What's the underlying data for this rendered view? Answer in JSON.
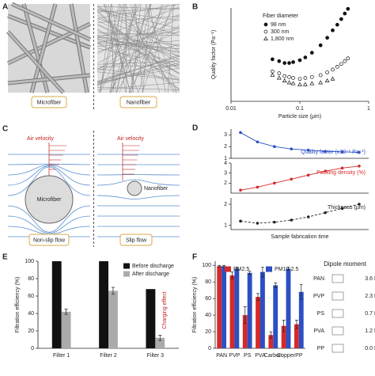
{
  "panel_a": {
    "label": "A",
    "captions": [
      "Microfiber",
      "Nanofiber"
    ]
  },
  "panel_c": {
    "label": "C",
    "velocity": [
      "Air velocity",
      "Air velocity"
    ],
    "fibers": [
      "Microfiber",
      "Nanofiber"
    ],
    "captions": [
      "Non-slip flow",
      "Slip flow"
    ]
  },
  "chart_data": [
    {
      "type": "scatter",
      "label": "B",
      "xlabel": "Particle size (μm)",
      "ylabel": "Quality factor (Pa⁻¹)",
      "xscale": "log",
      "xlim": [
        0.01,
        1
      ],
      "xticks": [
        0.01,
        0.1,
        1
      ],
      "ylim": [
        0,
        1
      ],
      "yticks": [],
      "legend_title": "Fiber diameter",
      "legend": "upper-left",
      "series": [
        {
          "name": "98 nm",
          "marker": "filled-circle",
          "color": "#111111",
          "x": [
            0.04,
            0.05,
            0.06,
            0.07,
            0.08,
            0.1,
            0.12,
            0.15,
            0.2,
            0.25,
            0.3,
            0.35,
            0.4,
            0.45,
            0.5
          ],
          "values": [
            0.45,
            0.43,
            0.41,
            0.41,
            0.42,
            0.44,
            0.47,
            0.52,
            0.6,
            0.68,
            0.76,
            0.82,
            0.88,
            0.94,
            0.99
          ]
        },
        {
          "name": "300 nm",
          "marker": "open-circle",
          "color": "#111111",
          "x": [
            0.04,
            0.05,
            0.06,
            0.07,
            0.08,
            0.1,
            0.12,
            0.15,
            0.2,
            0.25,
            0.3,
            0.35,
            0.4,
            0.45,
            0.5
          ],
          "values": [
            0.32,
            0.3,
            0.27,
            0.26,
            0.25,
            0.24,
            0.25,
            0.26,
            0.28,
            0.31,
            0.34,
            0.37,
            0.4,
            0.43,
            0.46
          ]
        },
        {
          "name": "1,800 nm",
          "marker": "open-triangle",
          "color": "#111111",
          "x": [
            0.04,
            0.05,
            0.06,
            0.07,
            0.08,
            0.1,
            0.12,
            0.15,
            0.2,
            0.25,
            0.3
          ],
          "values": [
            0.28,
            0.25,
            0.22,
            0.2,
            0.19,
            0.18,
            0.18,
            0.19,
            0.2,
            0.22,
            0.24
          ]
        }
      ]
    },
    {
      "type": "line",
      "label": "D",
      "series_label": "Quality factor (x10⁻¹ Pa⁻¹)",
      "color": "#2b4fc4",
      "markers": true,
      "line_style": "solid",
      "ylim": [
        1,
        3.5
      ],
      "yticks": [
        1,
        2,
        3
      ],
      "values": [
        3.2,
        2.4,
        2.0,
        1.8,
        1.7,
        1.6,
        1.55,
        1.5
      ]
    },
    {
      "type": "line",
      "series_label": "Packing density (%)",
      "color": "#d42a2a",
      "markers": true,
      "line_style": "solid",
      "ylim": [
        1,
        4
      ],
      "yticks": [
        2,
        3,
        4
      ],
      "values": [
        1.3,
        1.6,
        2.0,
        2.4,
        2.8,
        3.2,
        3.5,
        3.7
      ]
    },
    {
      "type": "line",
      "series_label": "Thickness (μm)",
      "xlabel": "Sample fabrication time",
      "color": "#222222",
      "markers": true,
      "line_style": "dashed",
      "ylim": [
        0.8,
        2.3
      ],
      "yticks": [
        1,
        2
      ],
      "values": [
        1.2,
        1.1,
        1.15,
        1.25,
        1.4,
        1.6,
        1.8,
        2.0
      ]
    },
    {
      "type": "bar",
      "label": "E",
      "ylabel": "Filtration efficiency (%)",
      "ylim": [
        0,
        100
      ],
      "yticks": [
        0,
        20,
        40,
        60,
        80,
        100
      ],
      "categories": [
        "Filter 1",
        "Filter 2",
        "Filter 3"
      ],
      "legend": "upper-right",
      "annotation": "Charging effect",
      "series": [
        {
          "name": "Before discharge",
          "color": "#111111",
          "values": [
            100,
            100,
            68
          ]
        },
        {
          "name": "After discharge",
          "color": "#aaaaaa",
          "values": [
            42,
            66,
            12
          ],
          "errors": [
            3,
            4,
            3
          ]
        }
      ]
    },
    {
      "type": "bar",
      "label": "F",
      "ylabel": "Filtration efficiency (%)",
      "ylim": [
        0,
        105
      ],
      "yticks": [
        0,
        20,
        40,
        60,
        80,
        100
      ],
      "categories": [
        "PAN",
        "PVP",
        "PS",
        "PVA",
        "Carbon",
        "Copper",
        "PP"
      ],
      "legend": "upper-center",
      "series": [
        {
          "name": "PM2.5",
          "color": "#d42a2a",
          "values": [
            99,
            88,
            40,
            62,
            16,
            27,
            29
          ],
          "errors": [
            1,
            4,
            10,
            4,
            4,
            7,
            5
          ]
        },
        {
          "name": "PM10-2.5",
          "color": "#2b4fc4",
          "values": [
            99,
            96,
            91,
            92,
            76,
            96,
            68
          ],
          "errors": [
            1,
            2,
            2,
            6,
            3,
            2,
            9
          ]
        }
      ],
      "table": {
        "title": "Dipole moment",
        "rows": [
          [
            "PAN",
            "3.6 D"
          ],
          [
            "PVP",
            "2.3 D"
          ],
          [
            "PS",
            "0.7 D"
          ],
          [
            "PVA",
            "1.2 D"
          ],
          [
            "PP",
            "0.0 D"
          ]
        ]
      }
    }
  ]
}
